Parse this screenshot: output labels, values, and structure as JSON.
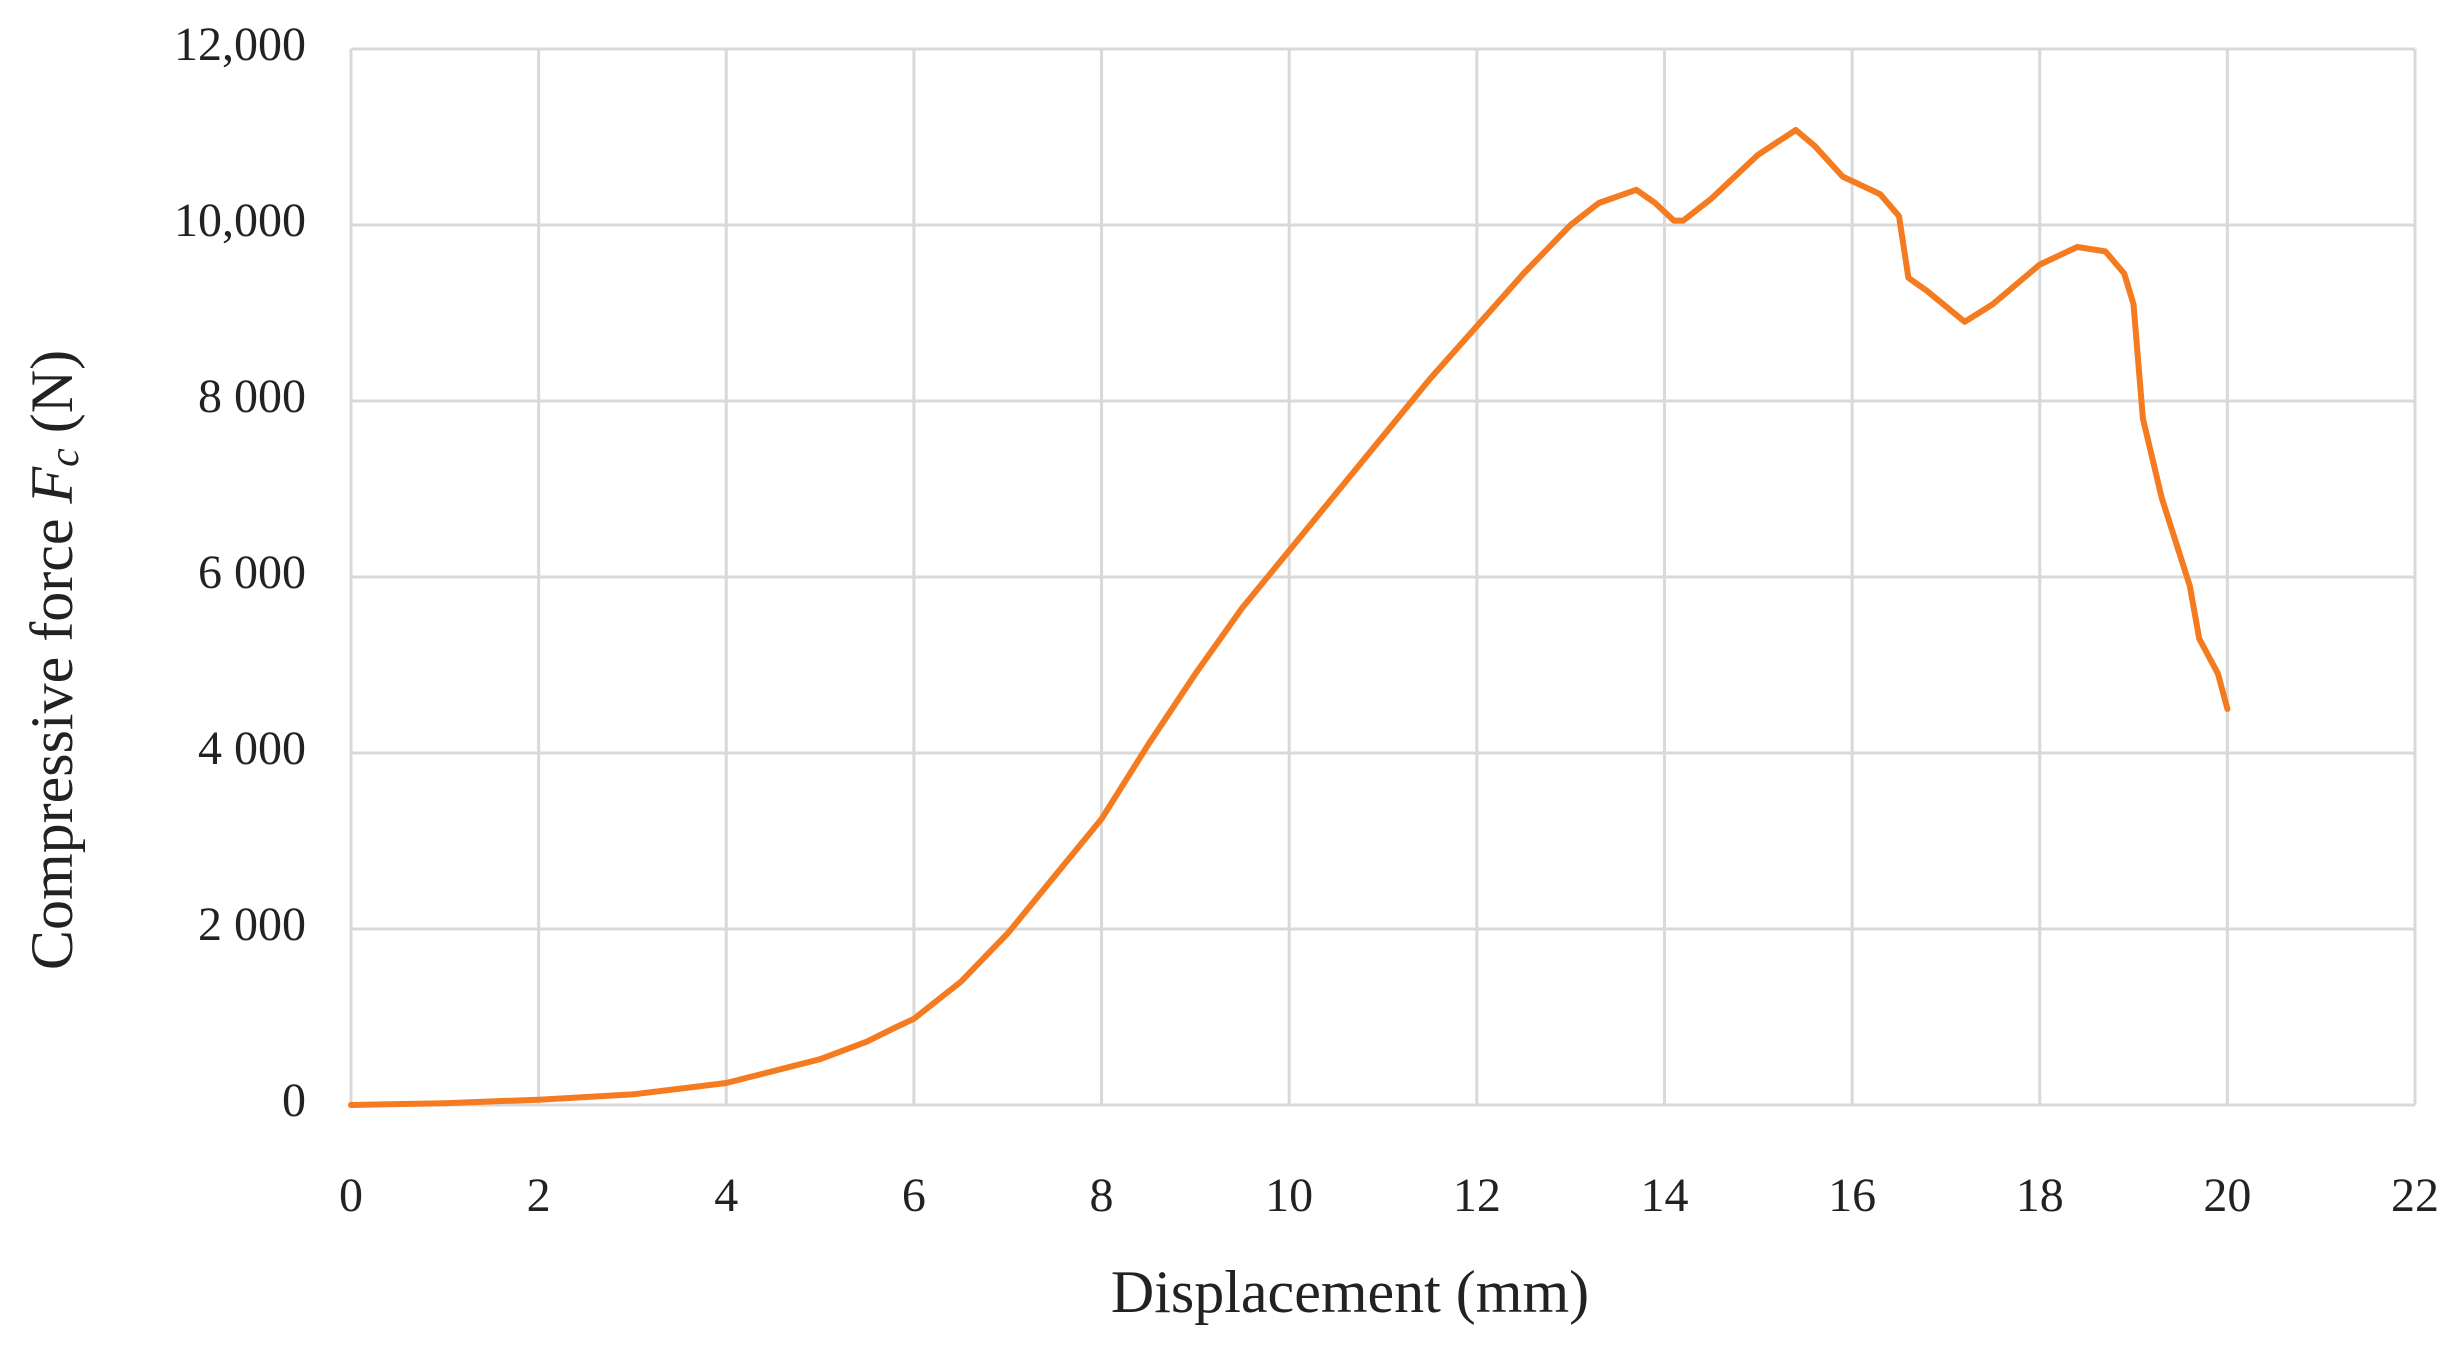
{
  "chart_data": {
    "type": "line",
    "x_label": "Displacement (mm)",
    "y_label": [
      "Compressive force",
      "F",
      "c",
      "(N)"
    ],
    "x": [
      0,
      1,
      2,
      3,
      4,
      5,
      5.5,
      5.8,
      6,
      6.5,
      7,
      7.5,
      8,
      8.5,
      9,
      9.5,
      10,
      10.5,
      11,
      11.5,
      12,
      12.5,
      13,
      13.3,
      13.7,
      13.9,
      14.1,
      14.2,
      14.5,
      15,
      15.4,
      15.6,
      15.9,
      16.3,
      16.5,
      16.6,
      16.8,
      17.2,
      17.5,
      18,
      18.4,
      18.7,
      18.9,
      19,
      19.1,
      19.3,
      19.6,
      19.7,
      19.9,
      20
    ],
    "values": [
      0,
      20,
      60,
      120,
      250,
      520,
      720,
      880,
      980,
      1400,
      1950,
      2600,
      3250,
      4100,
      4900,
      5650,
      6300,
      6950,
      7600,
      8250,
      8850,
      9450,
      10000,
      10250,
      10400,
      10250,
      10050,
      10050,
      10300,
      10800,
      11080,
      10900,
      10550,
      10350,
      10100,
      9400,
      9250,
      8900,
      9100,
      9550,
      9750,
      9700,
      9450,
      9100,
      7800,
      6900,
      5900,
      5300,
      4900,
      4500
    ],
    "color": "#f47b20",
    "xlim": [
      0,
      22
    ],
    "xticks": [
      0,
      2,
      4,
      6,
      8,
      10,
      12,
      14,
      16,
      18,
      20,
      22
    ],
    "ylim": [
      0,
      12000
    ],
    "yticks": [
      0,
      {
        "value": 2000,
        "label": "2 000"
      },
      {
        "value": 4000,
        "label": "4 000"
      },
      {
        "value": 6000,
        "label": "6 000"
      },
      {
        "value": 8000,
        "label": "8 000"
      },
      {
        "value": 10000,
        "label": "10,000"
      },
      {
        "value": 12000,
        "label": "12,000"
      }
    ],
    "grid": true
  }
}
